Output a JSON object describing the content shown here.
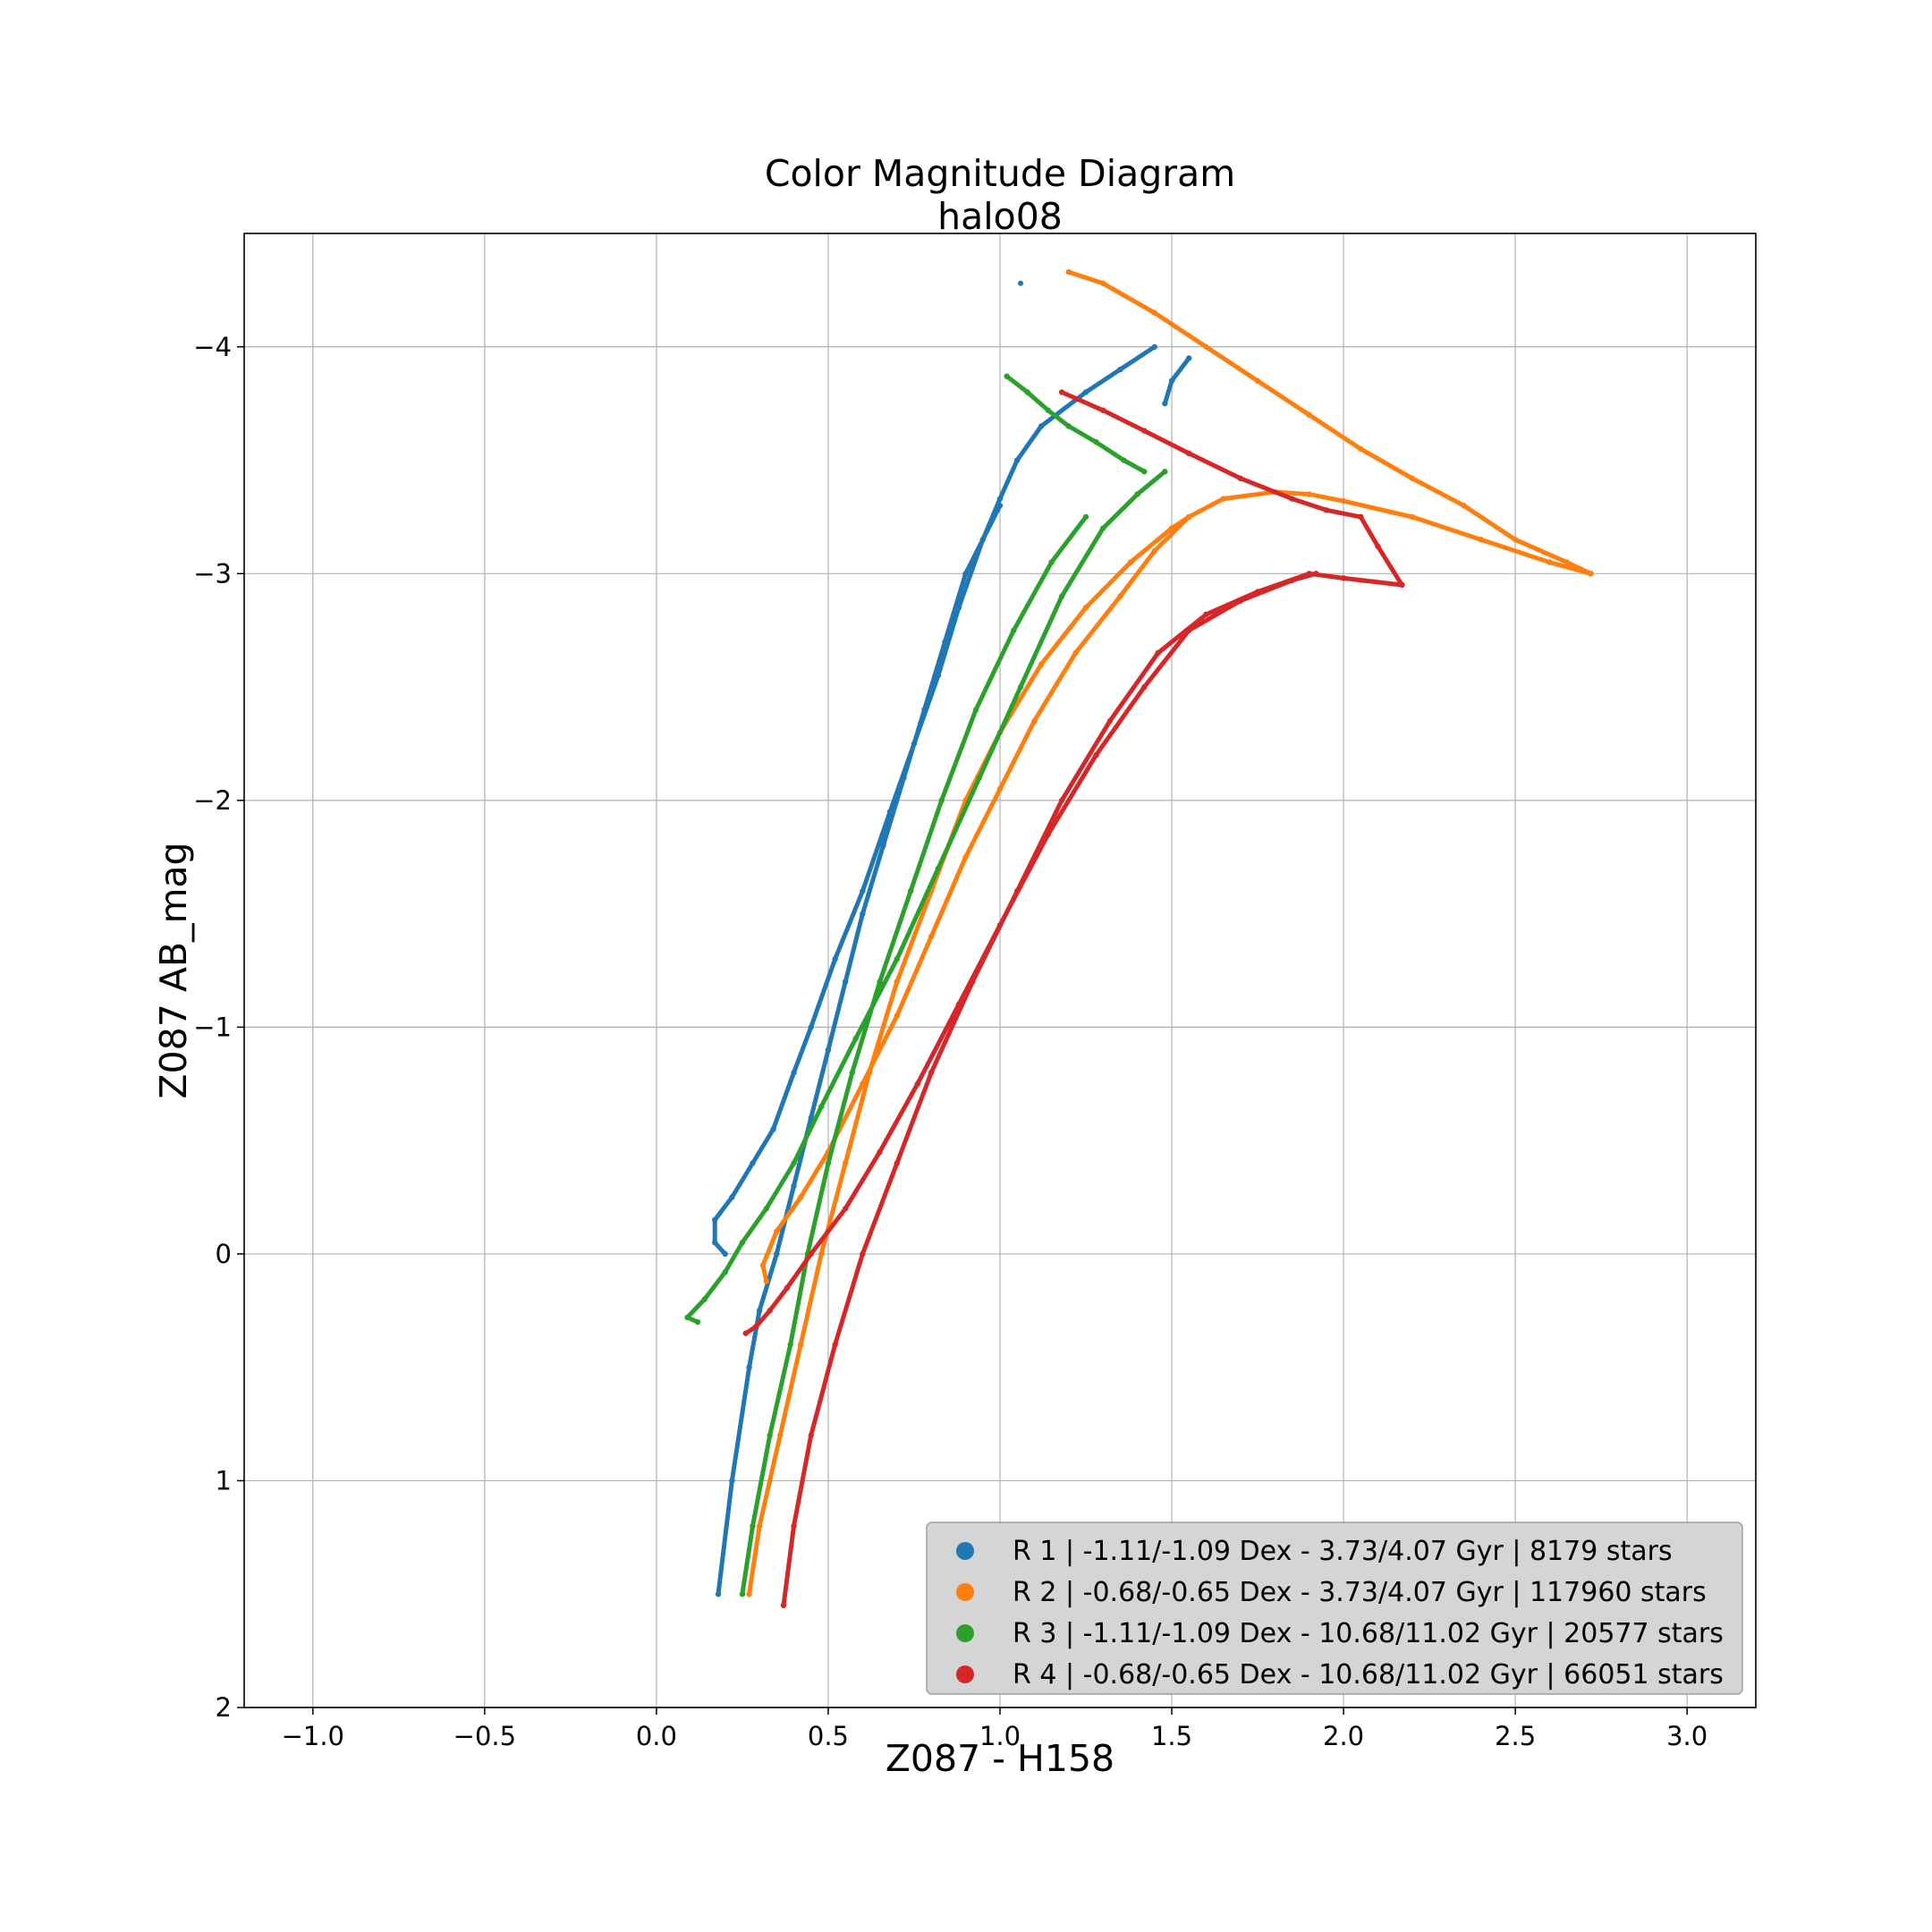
{
  "chart_data": {
    "type": "scatter",
    "title": "Color Magnitude Diagram",
    "subtitle": "halo08",
    "xlabel": "Z087 - H158",
    "ylabel": "Z087 AB_mag",
    "xlim": [
      -1.2,
      3.2
    ],
    "ylim": [
      2.0,
      -4.5
    ],
    "y_inverted": true,
    "grid": true,
    "legend_position": "lower-right",
    "xticks": [
      -1.0,
      -0.5,
      0.0,
      0.5,
      1.0,
      1.5,
      2.0,
      2.5,
      3.0
    ],
    "xtick_labels": [
      "−1.0",
      "−0.5",
      "0.0",
      "0.5",
      "1.0",
      "1.5",
      "2.0",
      "2.5",
      "3.0"
    ],
    "yticks": [
      -4,
      -3,
      -2,
      -1,
      0,
      1,
      2
    ],
    "ytick_labels": [
      "−4",
      "−3",
      "−2",
      "−1",
      "0",
      "1",
      "2"
    ],
    "series": [
      {
        "name": "R 1 | -1.11/-1.09 Dex - 3.73/4.07 Gyr | 8179 stars",
        "color": "#1f77b4",
        "tracks": [
          [
            [
              0.18,
              1.5
            ],
            [
              0.22,
              1.0
            ],
            [
              0.27,
              0.5
            ],
            [
              0.3,
              0.25
            ],
            [
              0.35,
              0.0
            ],
            [
              0.4,
              -0.3
            ],
            [
              0.45,
              -0.6
            ],
            [
              0.5,
              -0.9
            ],
            [
              0.55,
              -1.2
            ],
            [
              0.6,
              -1.5
            ],
            [
              0.66,
              -1.8
            ],
            [
              0.72,
              -2.1
            ],
            [
              0.78,
              -2.4
            ],
            [
              0.84,
              -2.7
            ],
            [
              0.9,
              -3.0
            ],
            [
              1.0,
              -3.3
            ]
          ],
          [
            [
              0.2,
              0.0
            ],
            [
              0.17,
              -0.05
            ],
            [
              0.17,
              -0.15
            ],
            [
              0.22,
              -0.25
            ],
            [
              0.28,
              -0.4
            ],
            [
              0.34,
              -0.55
            ],
            [
              0.4,
              -0.8
            ],
            [
              0.45,
              -1.0
            ],
            [
              0.52,
              -1.3
            ],
            [
              0.6,
              -1.6
            ],
            [
              0.68,
              -1.95
            ],
            [
              0.75,
              -2.25
            ],
            [
              0.82,
              -2.55
            ],
            [
              0.88,
              -2.85
            ],
            [
              0.95,
              -3.15
            ],
            [
              1.0,
              -3.33
            ],
            [
              1.05,
              -3.5
            ],
            [
              1.12,
              -3.65
            ],
            [
              1.25,
              -3.8
            ],
            [
              1.35,
              -3.9
            ],
            [
              1.45,
              -4.0
            ]
          ],
          [
            [
              1.48,
              -3.75
            ],
            [
              1.5,
              -3.85
            ],
            [
              1.55,
              -3.95
            ]
          ],
          [
            [
              1.06,
              -4.28
            ]
          ]
        ]
      },
      {
        "name": "R 2 | -0.68/-0.65 Dex - 3.73/4.07 Gyr | 117960 stars",
        "color": "#ff7f0e",
        "tracks": [
          [
            [
              0.27,
              1.5
            ],
            [
              0.3,
              1.2
            ],
            [
              0.36,
              0.8
            ],
            [
              0.42,
              0.4
            ],
            [
              0.48,
              0.0
            ],
            [
              0.55,
              -0.4
            ],
            [
              0.62,
              -0.8
            ],
            [
              0.7,
              -1.2
            ],
            [
              0.8,
              -1.6
            ],
            [
              0.9,
              -2.0
            ],
            [
              1.0,
              -2.3
            ],
            [
              1.12,
              -2.6
            ],
            [
              1.25,
              -2.85
            ],
            [
              1.38,
              -3.05
            ],
            [
              1.5,
              -3.2
            ],
            [
              1.55,
              -3.25
            ]
          ],
          [
            [
              0.32,
              0.12
            ],
            [
              0.31,
              0.05
            ],
            [
              0.35,
              -0.1
            ],
            [
              0.42,
              -0.25
            ],
            [
              0.5,
              -0.45
            ],
            [
              0.6,
              -0.75
            ],
            [
              0.7,
              -1.05
            ],
            [
              0.8,
              -1.4
            ],
            [
              0.9,
              -1.75
            ],
            [
              1.0,
              -2.05
            ],
            [
              1.1,
              -2.35
            ],
            [
              1.22,
              -2.65
            ],
            [
              1.35,
              -2.9
            ],
            [
              1.45,
              -3.1
            ],
            [
              1.55,
              -3.25
            ],
            [
              1.65,
              -3.33
            ],
            [
              1.8,
              -3.36
            ],
            [
              1.9,
              -3.35
            ],
            [
              2.0,
              -3.32
            ],
            [
              2.2,
              -3.25
            ],
            [
              2.4,
              -3.15
            ],
            [
              2.6,
              -3.05
            ],
            [
              2.72,
              -3.0
            ]
          ],
          [
            [
              1.2,
              -4.33
            ],
            [
              1.3,
              -4.28
            ],
            [
              1.45,
              -4.15
            ],
            [
              1.6,
              -4.0
            ],
            [
              1.75,
              -3.85
            ],
            [
              1.9,
              -3.7
            ],
            [
              2.05,
              -3.55
            ],
            [
              2.2,
              -3.42
            ],
            [
              2.35,
              -3.3
            ],
            [
              2.5,
              -3.15
            ],
            [
              2.65,
              -3.05
            ],
            [
              2.72,
              -3.0
            ]
          ]
        ]
      },
      {
        "name": "R 3 | -1.11/-1.09 Dex - 10.68/11.02 Gyr | 20577 stars",
        "color": "#2ca02c",
        "tracks": [
          [
            [
              0.25,
              1.5
            ],
            [
              0.28,
              1.2
            ],
            [
              0.33,
              0.8
            ],
            [
              0.39,
              0.4
            ],
            [
              0.44,
              0.0
            ],
            [
              0.5,
              -0.4
            ],
            [
              0.57,
              -0.8
            ],
            [
              0.65,
              -1.2
            ],
            [
              0.74,
              -1.6
            ],
            [
              0.83,
              -2.0
            ],
            [
              0.93,
              -2.4
            ],
            [
              1.04,
              -2.75
            ],
            [
              1.15,
              -3.05
            ],
            [
              1.25,
              -3.25
            ]
          ],
          [
            [
              0.12,
              0.3
            ],
            [
              0.09,
              0.28
            ],
            [
              0.14,
              0.2
            ],
            [
              0.2,
              0.08
            ],
            [
              0.25,
              -0.05
            ],
            [
              0.32,
              -0.2
            ],
            [
              0.4,
              -0.4
            ],
            [
              0.48,
              -0.65
            ],
            [
              0.58,
              -0.95
            ],
            [
              0.7,
              -1.3
            ],
            [
              0.82,
              -1.7
            ],
            [
              0.94,
              -2.1
            ],
            [
              1.06,
              -2.5
            ],
            [
              1.18,
              -2.9
            ],
            [
              1.3,
              -3.2
            ],
            [
              1.4,
              -3.35
            ],
            [
              1.48,
              -3.45
            ]
          ],
          [
            [
              1.02,
              -3.87
            ],
            [
              1.08,
              -3.8
            ],
            [
              1.14,
              -3.72
            ],
            [
              1.2,
              -3.65
            ],
            [
              1.28,
              -3.58
            ],
            [
              1.36,
              -3.5
            ],
            [
              1.42,
              -3.45
            ]
          ]
        ]
      },
      {
        "name": "R 4 | -0.68/-0.65 Dex - 10.68/11.02 Gyr | 66051 stars",
        "color": "#d62728",
        "tracks": [
          [
            [
              0.37,
              1.55
            ],
            [
              0.4,
              1.2
            ],
            [
              0.45,
              0.8
            ],
            [
              0.52,
              0.4
            ],
            [
              0.6,
              0.0
            ],
            [
              0.7,
              -0.4
            ],
            [
              0.8,
              -0.8
            ],
            [
              0.92,
              -1.2
            ],
            [
              1.05,
              -1.6
            ],
            [
              1.18,
              -2.0
            ],
            [
              1.32,
              -2.35
            ],
            [
              1.46,
              -2.65
            ],
            [
              1.6,
              -2.82
            ],
            [
              1.75,
              -2.92
            ],
            [
              1.9,
              -3.0
            ],
            [
              2.0,
              -2.98
            ],
            [
              2.17,
              -2.95
            ]
          ],
          [
            [
              0.26,
              0.35
            ],
            [
              0.29,
              0.32
            ],
            [
              0.33,
              0.25
            ],
            [
              0.38,
              0.15
            ],
            [
              0.45,
              0.0
            ],
            [
              0.55,
              -0.2
            ],
            [
              0.65,
              -0.45
            ],
            [
              0.76,
              -0.75
            ],
            [
              0.88,
              -1.1
            ],
            [
              1.0,
              -1.45
            ],
            [
              1.14,
              -1.85
            ],
            [
              1.28,
              -2.2
            ],
            [
              1.42,
              -2.5
            ],
            [
              1.55,
              -2.75
            ],
            [
              1.7,
              -2.88
            ],
            [
              1.85,
              -2.97
            ],
            [
              1.92,
              -3.0
            ]
          ],
          [
            [
              2.05,
              -3.25
            ],
            [
              2.1,
              -3.12
            ],
            [
              2.17,
              -2.95
            ]
          ],
          [
            [
              1.18,
              -3.8
            ],
            [
              1.3,
              -3.72
            ],
            [
              1.42,
              -3.63
            ],
            [
              1.55,
              -3.53
            ],
            [
              1.7,
              -3.42
            ],
            [
              1.85,
              -3.33
            ],
            [
              1.95,
              -3.28
            ],
            [
              2.05,
              -3.25
            ]
          ]
        ]
      }
    ]
  }
}
